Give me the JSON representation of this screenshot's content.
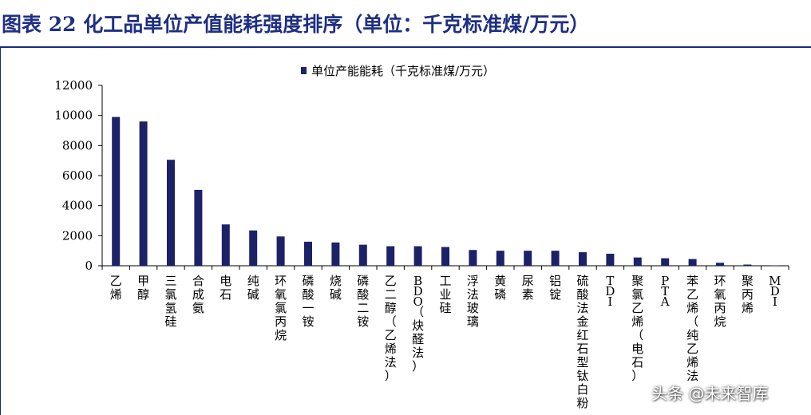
{
  "figure": {
    "title": "图表 22   化工品单位产值能耗强度排序（单位：千克标准煤/万元）",
    "watermark": "头条 @未来智库"
  },
  "colors": {
    "bar": "#1b2268",
    "title": "#1f2f83",
    "axis": "#000000"
  },
  "chart_data": {
    "type": "bar",
    "categories": [
      "乙烯",
      "甲醇",
      "三氯氢硅",
      "合成氨",
      "电石",
      "纯碱",
      "环氧氯丙烷",
      "磷酸一铵",
      "烧碱",
      "磷酸二铵",
      "乙二醇（乙烯法）",
      "BDO（炔醛法）",
      "工业硅",
      "浮法玻璃",
      "黄磷",
      "尿素",
      "铝锭",
      "硫酸法金红石型钛白粉",
      "TDI",
      "聚氯乙烯（电石）",
      "PTA",
      "苯乙烯（纯乙烯法",
      "环氧丙烷",
      "聚丙烯",
      "MDI"
    ],
    "series": [
      {
        "name": "单位产能能耗（千克标准煤/万元）",
        "values": [
          9900,
          9600,
          7050,
          5050,
          2750,
          2350,
          1950,
          1600,
          1550,
          1400,
          1300,
          1300,
          1250,
          1050,
          1000,
          1000,
          1000,
          900,
          800,
          550,
          500,
          450,
          200,
          80,
          20
        ]
      }
    ],
    "yticks": [
      "0",
      "2000",
      "4000",
      "6000",
      "8000",
      "10000",
      "12000"
    ],
    "ylim": [
      0,
      12000
    ],
    "legend_position": "top-center",
    "grid": false
  }
}
